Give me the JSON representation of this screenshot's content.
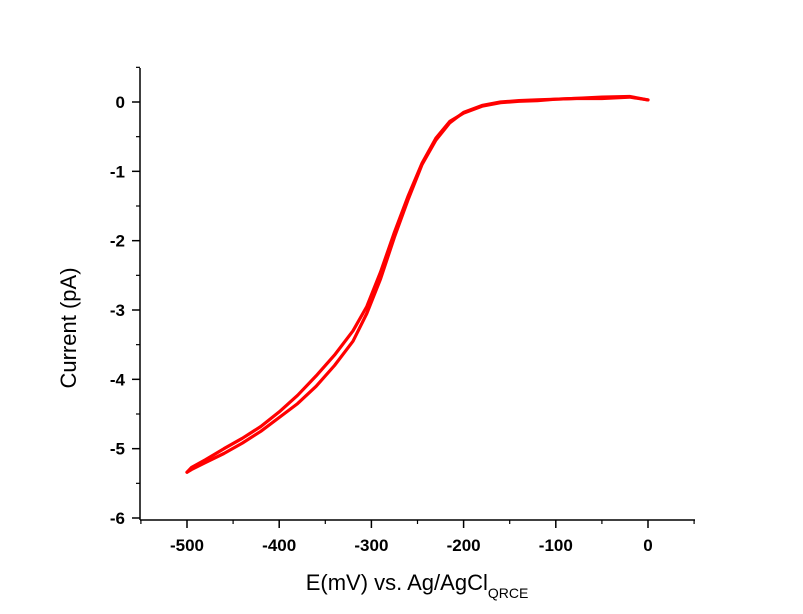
{
  "chart_data": {
    "type": "line",
    "title": "",
    "xlabel": "E(mV) vs. Ag/AgCl",
    "xlabel_subscript": "QRCE",
    "ylabel": "Current (pA)",
    "xlim": [
      -550,
      50
    ],
    "ylim": [
      -6,
      0.5
    ],
    "xticks": [
      -500,
      -400,
      -300,
      -200,
      -100,
      0
    ],
    "xtick_labels": [
      "-500",
      "-400",
      "-300",
      "-200",
      "-100",
      "0"
    ],
    "yticks": [
      0,
      -1,
      -2,
      -3,
      -4,
      -5,
      -6
    ],
    "ytick_labels": [
      "0",
      "-1",
      "-2",
      "-3",
      "-4",
      "-5",
      "-6"
    ],
    "grid": false,
    "legend": "none",
    "color": "#ff0000",
    "series": [
      {
        "values_x": [
          0,
          -20,
          -50,
          -80,
          -100,
          -120,
          -140,
          -160,
          -180,
          -200,
          -215,
          -230,
          -245,
          -260,
          -275,
          -290,
          -305,
          -320,
          -340,
          -360,
          -380,
          -400,
          -420,
          -440,
          -460,
          -480,
          -495,
          -500
        ],
        "values_y": [
          0.03,
          0.07,
          0.05,
          0.05,
          0.04,
          0.03,
          0.02,
          0.0,
          -0.05,
          -0.15,
          -0.3,
          -0.55,
          -0.9,
          -1.4,
          -1.95,
          -2.55,
          -3.05,
          -3.45,
          -3.8,
          -4.1,
          -4.35,
          -4.55,
          -4.75,
          -4.92,
          -5.07,
          -5.2,
          -5.3,
          -5.34
        ]
      },
      {
        "values_x": [
          -500,
          -495,
          -480,
          -460,
          -440,
          -420,
          -400,
          -380,
          -360,
          -340,
          -320,
          -305,
          -290,
          -275,
          -260,
          -245,
          -230,
          -215,
          -200,
          -180,
          -160,
          -140,
          -120,
          -100,
          -80,
          -50,
          -20,
          0
        ],
        "values_y": [
          -5.34,
          -5.27,
          -5.16,
          -5.0,
          -4.85,
          -4.68,
          -4.47,
          -4.23,
          -3.95,
          -3.65,
          -3.3,
          -2.95,
          -2.45,
          -1.88,
          -1.35,
          -0.88,
          -0.52,
          -0.28,
          -0.16,
          -0.06,
          -0.01,
          0.01,
          0.02,
          0.04,
          0.05,
          0.07,
          0.08,
          0.03
        ]
      }
    ]
  }
}
